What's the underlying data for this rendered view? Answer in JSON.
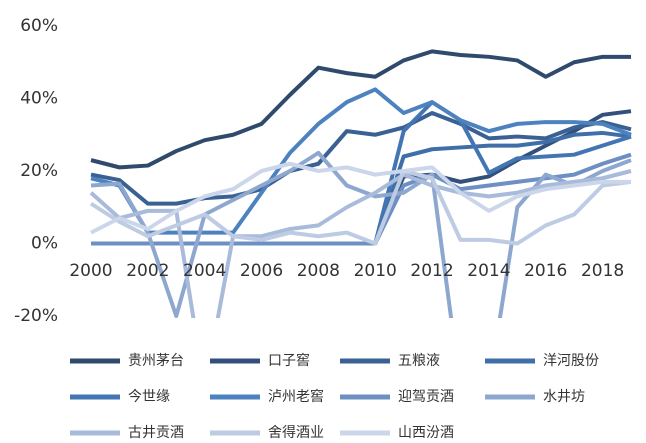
{
  "chart_data": {
    "type": "line",
    "x": [
      2000,
      2001,
      2002,
      2003,
      2004,
      2005,
      2006,
      2007,
      2008,
      2009,
      2010,
      2011,
      2012,
      2013,
      2014,
      2015,
      2016,
      2017,
      2018,
      2019
    ],
    "xlim": [
      2000,
      2019
    ],
    "xticks": [
      2000,
      2002,
      2004,
      2006,
      2008,
      2010,
      2012,
      2014,
      2016,
      2018
    ],
    "ylim": [
      -20,
      60
    ],
    "yticks": [
      {
        "value": -20,
        "label": "-20%"
      },
      {
        "value": 0,
        "label": "0%"
      },
      {
        "value": 20,
        "label": "20%"
      },
      {
        "value": 40,
        "label": "40%"
      },
      {
        "value": 60,
        "label": "60%"
      }
    ],
    "legend": "bottom",
    "series": [
      {
        "name": "贵州茅台",
        "color": "#2f4a6d",
        "values": [
          23,
          21,
          21.5,
          25.5,
          28.5,
          30,
          33,
          41,
          48.5,
          47,
          46,
          50.5,
          53,
          52,
          51.5,
          50.5,
          46,
          50,
          51.5,
          51.5
        ]
      },
      {
        "name": "口子窖",
        "color": "#33507c",
        "values": [
          0,
          0,
          0,
          0,
          0,
          0,
          0,
          0,
          0,
          0,
          0,
          18.5,
          19,
          17,
          18.5,
          23,
          27,
          31,
          35.5,
          36.5
        ]
      },
      {
        "name": "五粮液",
        "color": "#3a6194",
        "values": [
          19,
          17.5,
          11,
          11,
          12.5,
          13,
          15,
          20,
          22,
          31,
          30,
          32,
          36,
          33,
          29,
          29.5,
          29,
          32,
          33.5,
          31.5
        ]
      },
      {
        "name": "洋河股份",
        "color": "#3f6ea8",
        "values": [
          0,
          0,
          0,
          0,
          0,
          0,
          0,
          0,
          0,
          0,
          0,
          24,
          26,
          26.5,
          27,
          27,
          28,
          30,
          30.5,
          29.5
        ]
      },
      {
        "name": "今世缘",
        "color": "#4475b3",
        "values": [
          0,
          0,
          0,
          0,
          0,
          0,
          0,
          0,
          0,
          0,
          0,
          31,
          39,
          34,
          19.5,
          23.5,
          24,
          24.5,
          27,
          29.5
        ]
      },
      {
        "name": "泸州老窖",
        "color": "#4d82c0",
        "values": [
          18,
          16,
          3,
          3,
          3,
          3,
          14,
          25,
          33,
          39,
          42.5,
          36,
          39,
          34,
          31,
          33,
          33.5,
          33.5,
          33,
          30
        ]
      },
      {
        "name": "迎驾贡酒",
        "color": "#6d8fc3",
        "values": [
          0,
          0,
          0,
          0,
          0,
          0,
          0,
          0,
          0,
          0,
          0,
          16,
          19,
          15,
          16,
          17,
          18,
          19,
          22,
          24.5
        ]
      },
      {
        "name": "水井坊",
        "color": "#8ea7cf",
        "values": [
          16,
          16.5,
          3,
          -20,
          8,
          12,
          16,
          20,
          25,
          16,
          13,
          14,
          19,
          -40,
          -40,
          10,
          19,
          16,
          20,
          23
        ]
      },
      {
        "name": "古井贡酒",
        "color": "#a8bbdb",
        "values": [
          14,
          7,
          9,
          9,
          -40,
          2,
          2,
          4,
          5,
          10,
          14,
          19,
          16,
          14,
          13,
          14,
          16,
          17,
          18,
          20
        ]
      },
      {
        "name": "舍得酒业",
        "color": "#bdcbe3",
        "values": [
          11,
          6,
          2,
          5,
          8,
          2,
          1,
          3,
          2,
          3,
          0,
          20,
          18,
          1,
          1,
          0,
          5,
          8,
          16,
          17
        ]
      },
      {
        "name": "山西汾酒",
        "color": "#ccd6ea",
        "values": [
          3,
          7,
          4,
          9,
          13,
          15,
          20,
          22,
          20,
          21,
          19,
          20,
          21,
          14,
          9,
          13,
          15,
          16,
          17,
          17
        ]
      }
    ]
  }
}
